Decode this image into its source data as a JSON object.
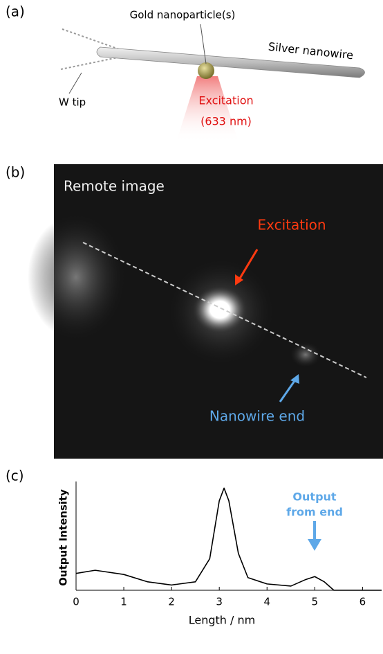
{
  "panel_a": {
    "label": "(a)",
    "particle": "Gold nanoparticle(s)",
    "wire": "Silver nanowire",
    "tip": "W tip",
    "excitation": "Excitation",
    "wavelength": "(633 nm)"
  },
  "panel_b": {
    "label": "(b)",
    "title": "Remote image",
    "excitation": "Excitation",
    "end": "Nanowire end"
  },
  "chart_data": {
    "type": "line",
    "label": "(c)",
    "x_label": "Length / nm",
    "y_label": "Output Intensity",
    "annotation": [
      "Output",
      "from end"
    ],
    "x": [
      0,
      0.4,
      1.0,
      1.5,
      2.0,
      2.5,
      2.8,
      3.0,
      3.1,
      3.2,
      3.4,
      3.6,
      4.0,
      4.5,
      4.8,
      5.0,
      5.2,
      5.4,
      6.4
    ],
    "series": [
      {
        "color": "#000000",
        "values": [
          0.16,
          0.19,
          0.15,
          0.08,
          0.05,
          0.08,
          0.3,
          0.85,
          0.97,
          0.85,
          0.35,
          0.12,
          0.06,
          0.04,
          0.1,
          0.13,
          0.08,
          0.0,
          0.0
        ]
      }
    ],
    "xlim": [
      0,
      6.4
    ],
    "xticks": [
      0,
      1,
      2,
      3,
      4,
      5,
      6
    ],
    "ylim": [
      0,
      1
    ]
  }
}
